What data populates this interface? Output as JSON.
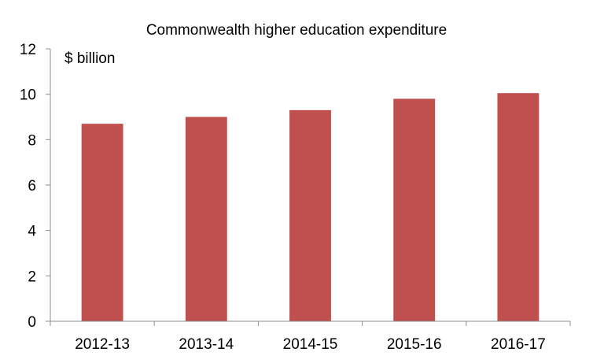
{
  "chart_data": {
    "type": "bar",
    "title": "Commonwealth higher education expenditure",
    "unit_label": "$ billion",
    "xlabel": "",
    "ylabel": "",
    "categories": [
      "2012-13",
      "2013-14",
      "2014-15",
      "2015-16",
      "2016-17"
    ],
    "values": [
      8.7,
      9.0,
      9.3,
      9.8,
      10.05
    ],
    "ylim": [
      0,
      12
    ],
    "yticks": [
      "0",
      "2",
      "4",
      "6",
      "8",
      "10",
      "12"
    ],
    "grid": false,
    "legend": "none",
    "bar_color": "#c0504d",
    "axis_color": "#8c8c8c"
  }
}
